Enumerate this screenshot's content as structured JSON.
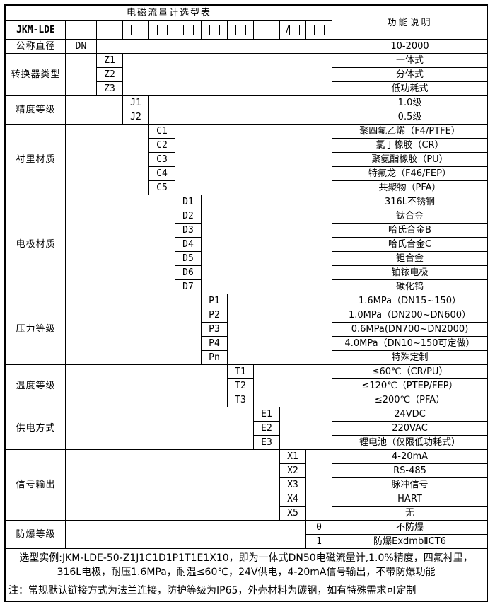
{
  "table": {
    "title": "电磁流量计选型表",
    "desc_header": "功能说明",
    "model": "JKM-LDE",
    "checkboxes": [
      "",
      "",
      "",
      "",
      "",
      "",
      "",
      "",
      "/",
      ""
    ],
    "sections": [
      {
        "label": "公称直径",
        "col": 1,
        "rows": [
          {
            "code": "DN",
            "desc": "10-2000"
          }
        ]
      },
      {
        "label": "转换器类型",
        "col": 2,
        "rows": [
          {
            "code": "Z1",
            "desc": "一体式"
          },
          {
            "code": "Z2",
            "desc": "分体式"
          },
          {
            "code": "Z3",
            "desc": "低功耗式"
          }
        ]
      },
      {
        "label": "精度等级",
        "col": 3,
        "rows": [
          {
            "code": "J1",
            "desc": "1.0级"
          },
          {
            "code": "J2",
            "desc": "0.5级"
          }
        ]
      },
      {
        "label": "衬里材质",
        "col": 4,
        "rows": [
          {
            "code": "C1",
            "desc": "聚四氟乙烯（F4/PTFE）"
          },
          {
            "code": "C2",
            "desc": "氯丁橡胶（CR）"
          },
          {
            "code": "C3",
            "desc": "聚氨酯橡胶（PU）"
          },
          {
            "code": "C4",
            "desc": "特氟龙（F46/FEP）"
          },
          {
            "code": "C5",
            "desc": "共聚物（PFA）"
          }
        ]
      },
      {
        "label": "电极材质",
        "col": 5,
        "rows": [
          {
            "code": "D1",
            "desc": "316L不锈钢"
          },
          {
            "code": "D2",
            "desc": "钛合金"
          },
          {
            "code": "D3",
            "desc": "哈氏合金B"
          },
          {
            "code": "D4",
            "desc": "哈氏合金C"
          },
          {
            "code": "D5",
            "desc": "钽合金"
          },
          {
            "code": "D6",
            "desc": "铂铱电极"
          },
          {
            "code": "D7",
            "desc": "碳化钨"
          }
        ]
      },
      {
        "label": "压力等级",
        "col": 6,
        "rows": [
          {
            "code": "P1",
            "desc": "1.6MPa（DN15~150）"
          },
          {
            "code": "P2",
            "desc": "1.0MPa（DN200~DN600）"
          },
          {
            "code": "P3",
            "desc": "0.6MPa(DN700~DN2000)"
          },
          {
            "code": "P4",
            "desc": "4.0MPa（DN10~150可定做）"
          },
          {
            "code": "Pn",
            "desc": "特殊定制"
          }
        ]
      },
      {
        "label": "温度等级",
        "col": 7,
        "rows": [
          {
            "code": "T1",
            "desc": "≤60℃（CR/PU）"
          },
          {
            "code": "T2",
            "desc": "≤120℃（PTEP/FEP）"
          },
          {
            "code": "T3",
            "desc": "≤200℃（PFA）"
          }
        ]
      },
      {
        "label": "供电方式",
        "col": 8,
        "rows": [
          {
            "code": "E1",
            "desc": "24VDC"
          },
          {
            "code": "E2",
            "desc": "220VAC"
          },
          {
            "code": "E3",
            "desc": "锂电池（仅限低功耗式）"
          }
        ]
      },
      {
        "label": "信号输出",
        "col": 9,
        "rows": [
          {
            "code": "X1",
            "desc": "4-20mA"
          },
          {
            "code": "X2",
            "desc": "RS-485"
          },
          {
            "code": "X3",
            "desc": "脉冲信号"
          },
          {
            "code": "X4",
            "desc": "HART"
          },
          {
            "code": "X5",
            "desc": "无"
          }
        ]
      },
      {
        "label": "防爆等级",
        "col": 10,
        "rows": [
          {
            "code": "0",
            "desc": "不防爆"
          },
          {
            "code": "1",
            "desc": "防爆ExdmbⅡCT6"
          }
        ]
      }
    ]
  },
  "footer": {
    "example": "选型实例:JKM-LDE-50-Z1J1C1D1P1T1E1X10，即为一体式DN50电磁流量计,1.0%精度，四氟衬里，316L电极，耐压1.6MPa，耐温≤60℃，24V供电，4-20mA信号输出，不带防爆功能",
    "note": "注：常规默认链接方式为法兰连接，防护等级为IP65，外壳材料为碳钢，如有特殊需求可定制"
  },
  "colors": {
    "background": "#ffffff",
    "border": "#000000",
    "text": "#000000"
  }
}
